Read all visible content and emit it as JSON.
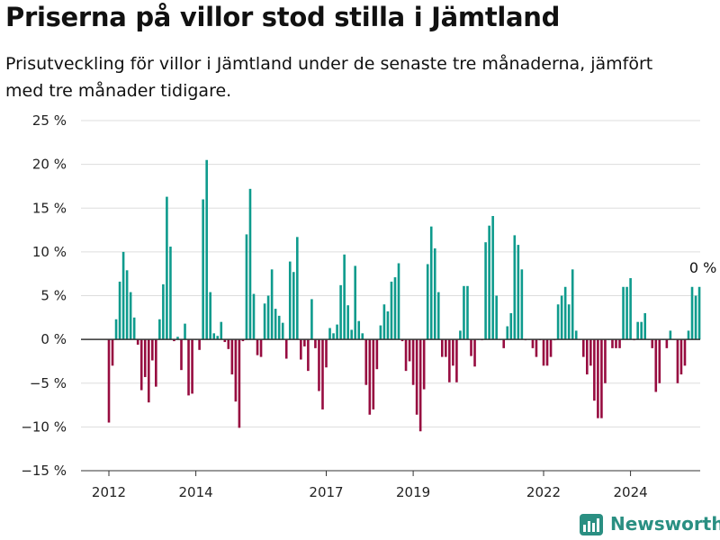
{
  "header": {
    "title": "Priserna på villor stod stilla i Jämtland",
    "subtitle": "Prisutveckling för villor i Jämtland under de senaste tre månaderna, jämfört med tre månader tidigare."
  },
  "brand": {
    "name": "Newsworthy"
  },
  "colors": {
    "positive": "#0e9b8d",
    "negative": "#970c40",
    "grid": "#dddddd",
    "zero_line": "#333333",
    "brand": "#2a8f82"
  },
  "chart_data": {
    "type": "bar",
    "title": "Priserna på villor stod stilla i Jämtland",
    "xlabel": "",
    "ylabel": "",
    "ylim": [
      -15,
      25
    ],
    "yticks": [
      25,
      20,
      15,
      10,
      5,
      0,
      -5,
      -10,
      -15
    ],
    "ytick_labels": [
      "25 %",
      "20 %",
      "15 %",
      "10 %",
      "5 %",
      "0 %",
      "−5 %",
      "−10 %",
      "−15 %"
    ],
    "xticks": [
      {
        "label": "2012",
        "t": 2012.0
      },
      {
        "label": "2014",
        "t": 2014.0
      },
      {
        "label": "2017",
        "t": 2017.0
      },
      {
        "label": "2019",
        "t": 2019.0
      },
      {
        "label": "2022",
        "t": 2022.0
      },
      {
        "label": "2024",
        "t": 2024.0
      }
    ],
    "grid": true,
    "start_month": "2012-01",
    "values": [
      -9.5,
      -3,
      2.3,
      6.6,
      10,
      7.9,
      5.4,
      2.5,
      -0.6,
      -5.8,
      -4.3,
      -7.2,
      -2.4,
      -5.4,
      2.3,
      6.3,
      16.3,
      10.6,
      -0.2,
      0.3,
      -3.5,
      1.8,
      -6.4,
      -6.2,
      0,
      -1.2,
      16,
      20.5,
      5.4,
      0.7,
      0.4,
      2,
      -0.3,
      -1.1,
      -4,
      -7.1,
      -10.1,
      -0.2,
      12,
      17.2,
      5.2,
      -1.8,
      -2,
      4.1,
      5,
      8,
      3.5,
      2.7,
      1.9,
      -2.2,
      8.9,
      7.7,
      11.7,
      -2.3,
      -0.8,
      -3.6,
      4.6,
      -1,
      -5.9,
      -8,
      -3.2,
      1.3,
      0.7,
      1.7,
      6.2,
      9.7,
      3.9,
      1.1,
      8.4,
      2.1,
      0.7,
      -5.2,
      -8.6,
      -8,
      -3.4,
      1.6,
      4,
      3.2,
      6.6,
      7.1,
      8.7,
      -0.2,
      -3.6,
      -2.5,
      -5.2,
      -8.6,
      -10.5,
      -5.7,
      8.6,
      12.9,
      10.4,
      5.4,
      -2,
      -2,
      -4.9,
      -3,
      -4.9,
      1,
      6.1,
      6.1,
      -1.9,
      -3.1,
      0,
      -0.1,
      11.1,
      13,
      14.1,
      5,
      0,
      -1,
      1.5,
      3,
      11.9,
      10.8,
      8,
      -0.1,
      0,
      -1,
      -2,
      -0.1,
      -3,
      -3,
      -2,
      -0.1,
      4,
      5,
      6,
      4,
      8,
      1,
      0,
      -2,
      -4,
      -3,
      -7,
      -9,
      -9,
      -5,
      0,
      -1,
      -1,
      -1,
      6,
      6,
      7,
      -0.1,
      2,
      2,
      3,
      0,
      -1,
      -6,
      -5,
      0,
      -1,
      1,
      0,
      -5,
      -4,
      -3,
      1,
      6,
      5,
      6
    ],
    "annotation": {
      "label": "0 %"
    }
  }
}
